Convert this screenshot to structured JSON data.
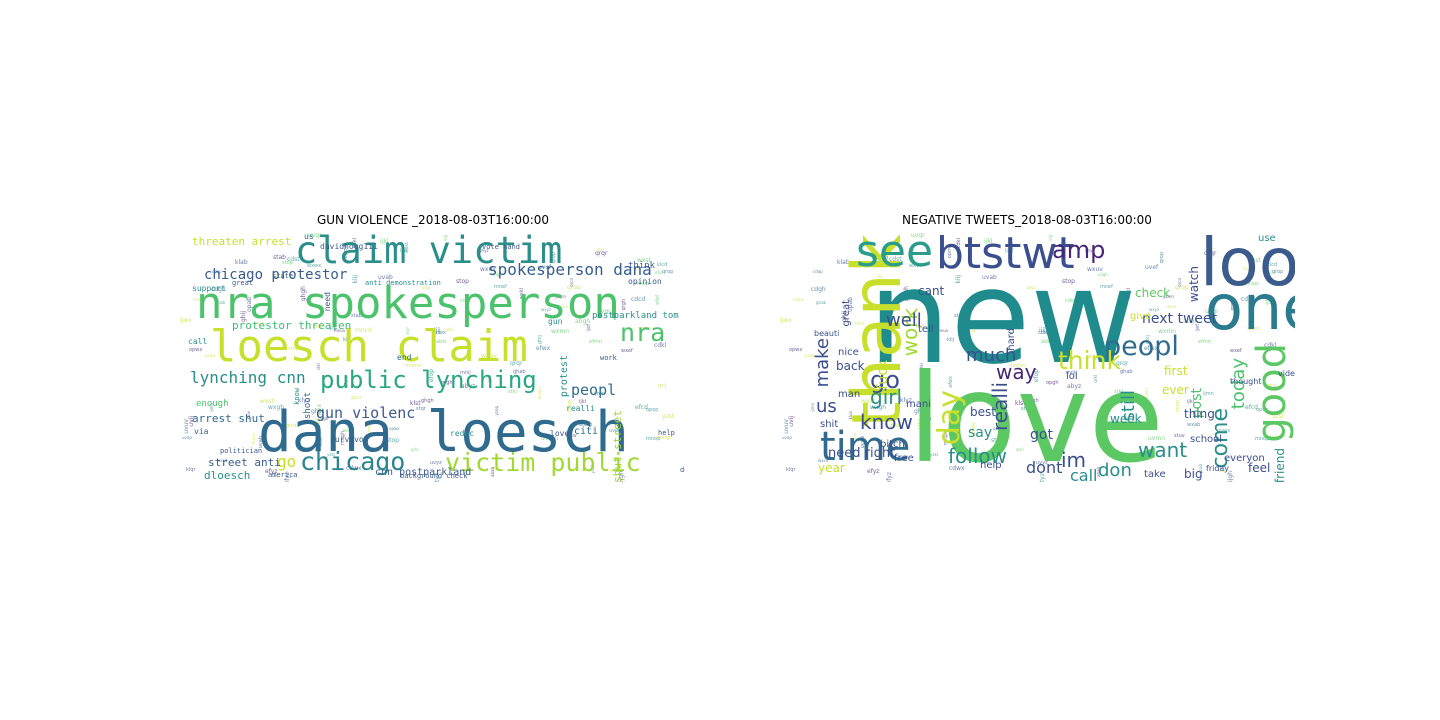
{
  "figure": {
    "left_title": "GUN VIOLENCE _2018-08-03T16:00:00",
    "right_title": "NEGATIVE TWEETS_2018-08-03T16:00:00"
  },
  "left_cloud": {
    "words": [
      {
        "text": "dana loesch",
        "size": "large",
        "color": "#2f6b8e"
      },
      {
        "text": "nra spokesperson",
        "size": "large",
        "color": "#4cc26c"
      },
      {
        "text": "loesch claim",
        "size": "large",
        "color": "#c8df2b"
      },
      {
        "text": "claim victim",
        "size": "large",
        "color": "#2a8f8a"
      },
      {
        "text": "public lynching",
        "size": "medium",
        "color": "#29a782"
      },
      {
        "text": "chicago",
        "size": "medium",
        "color": "#2b8590"
      },
      {
        "text": "victim public",
        "size": "medium",
        "color": "#a0d936"
      },
      {
        "text": "spokesperson dana",
        "size": "medium",
        "color": "#345e8d"
      },
      {
        "text": "nra",
        "size": "medium",
        "color": "#4cc26c"
      },
      {
        "text": "chicago protestor",
        "size": "medium",
        "color": "#3b5b8d"
      },
      {
        "text": "lynching cnn",
        "size": "medium",
        "color": "#2a8f8a"
      },
      {
        "text": "gun violenc",
        "size": "medium",
        "color": "#3b5b8d"
      },
      {
        "text": "peopl",
        "size": "medium",
        "color": "#2f6b8e"
      },
      {
        "text": "go",
        "size": "medium",
        "color": "#c8df2b"
      },
      {
        "text": "threaten arrest",
        "size": "small",
        "color": "#c8df2b"
      },
      {
        "text": "protestor threaten",
        "size": "small",
        "color": "#3fbc73"
      },
      {
        "text": "arrest shut",
        "size": "small",
        "color": "#2f6b8e"
      },
      {
        "text": "street anti",
        "size": "small",
        "color": "#3b5b8d"
      },
      {
        "text": "dloesch",
        "size": "small",
        "color": "#2a8f8a"
      },
      {
        "text": "cnn postparkland",
        "size": "small",
        "color": "#3b5b8d"
      },
      {
        "text": "postparkland tom",
        "size": "small",
        "color": "#2a8f8a"
      },
      {
        "text": "shut street",
        "size": "small",
        "color": "#a0d936"
      },
      {
        "text": "protest",
        "size": "small",
        "color": "#2a8f8a"
      },
      {
        "text": "citi",
        "size": "small",
        "color": "#2f6b8e"
      },
      {
        "text": "enough",
        "size": "small",
        "color": "#4cc26c"
      },
      {
        "text": "opinion",
        "size": "small",
        "color": "#3b5b8d"
      },
      {
        "text": "think",
        "size": "small",
        "color": "#3b5b8d"
      },
      {
        "text": "support",
        "size": "small",
        "color": "#2a8f8a"
      },
      {
        "text": "call",
        "size": "small",
        "color": "#2a8f8a"
      },
      {
        "text": "end",
        "size": "small",
        "color": "#2f6b8e"
      },
      {
        "text": "need",
        "size": "small",
        "color": "#3b5b8d"
      },
      {
        "text": "shoot",
        "size": "small",
        "color": "#2f6b8e"
      },
      {
        "text": "via",
        "size": "small",
        "color": "#3b5b8d"
      },
      {
        "text": "gun",
        "size": "small",
        "color": "#2a8f8a"
      },
      {
        "text": "reduc",
        "size": "small",
        "color": "#2a8f8a"
      },
      {
        "text": "love",
        "size": "small",
        "color": "#3b5b8d"
      },
      {
        "text": "realli",
        "size": "small",
        "color": "#2a8f8a"
      },
      {
        "text": "vote nand",
        "size": "small",
        "color": "#3b5b8d"
      },
      {
        "text": "davidhogg111",
        "size": "small",
        "color": "#3b5b8d"
      },
      {
        "text": "survivor",
        "size": "small",
        "color": "#3b5b8d"
      },
      {
        "text": "politician",
        "size": "small",
        "color": "#3b5b8d"
      },
      {
        "text": "america",
        "size": "small",
        "color": "#3b5b8d"
      },
      {
        "text": "anti demonstration",
        "size": "small",
        "color": "#2a8f8a"
      },
      {
        "text": "background check",
        "size": "small",
        "color": "#3b5b8d"
      },
      {
        "text": "us",
        "size": "small",
        "color": "#2f6b8e"
      },
      {
        "text": "great",
        "size": "small",
        "color": "#3b5b8d"
      },
      {
        "text": "state",
        "size": "small",
        "color": "#3b5b8d"
      },
      {
        "text": "don",
        "size": "small",
        "color": "#3b5b8d"
      },
      {
        "text": "work",
        "size": "small",
        "color": "#3b5b8d"
      },
      {
        "text": "know",
        "size": "small",
        "color": "#2a8f8a"
      },
      {
        "text": "help",
        "size": "small",
        "color": "#3b5b8d"
      }
    ]
  },
  "right_cloud": {
    "words": [
      {
        "text": "new",
        "size": "huge",
        "color": "#1f8b8c"
      },
      {
        "text": "love",
        "size": "huge",
        "color": "#5cc863"
      },
      {
        "text": "thank",
        "size": "large",
        "color": "#c8df2b"
      },
      {
        "text": "look",
        "size": "large",
        "color": "#3b5b8d"
      },
      {
        "text": "btstwt",
        "size": "large",
        "color": "#3b4f8e"
      },
      {
        "text": "one",
        "size": "large",
        "color": "#2b7b8e"
      },
      {
        "text": "see",
        "size": "large",
        "color": "#2a9d8a"
      },
      {
        "text": "time",
        "size": "large",
        "color": "#2f6b8e"
      },
      {
        "text": "good",
        "size": "large",
        "color": "#5cc863"
      },
      {
        "text": "day",
        "size": "medium",
        "color": "#c8df2b"
      },
      {
        "text": "peopl",
        "size": "medium",
        "color": "#2f6b8e"
      },
      {
        "text": "think",
        "size": "medium",
        "color": "#c8df2b"
      },
      {
        "text": "work",
        "size": "medium",
        "color": "#a0d936"
      },
      {
        "text": "follow",
        "size": "medium",
        "color": "#2a8f8a"
      },
      {
        "text": "know",
        "size": "medium",
        "color": "#3b4f8e"
      },
      {
        "text": "come",
        "size": "medium",
        "color": "#2a8f8a"
      },
      {
        "text": "today",
        "size": "medium",
        "color": "#4cc26c"
      },
      {
        "text": "amp",
        "size": "medium",
        "color": "#482677"
      },
      {
        "text": "go",
        "size": "medium",
        "color": "#3b4f8e"
      },
      {
        "text": "girl",
        "size": "medium",
        "color": "#2a8f8a"
      },
      {
        "text": "much",
        "size": "medium",
        "color": "#3b4f8e"
      },
      {
        "text": "want",
        "size": "medium",
        "color": "#2a8f8a"
      },
      {
        "text": "still",
        "size": "medium",
        "color": "#2a8f8a"
      },
      {
        "text": "im",
        "size": "medium",
        "color": "#3b4f8e"
      },
      {
        "text": "make",
        "size": "medium",
        "color": "#3b4f8e"
      },
      {
        "text": "us",
        "size": "medium",
        "color": "#3b4f8e"
      },
      {
        "text": "way",
        "size": "medium",
        "color": "#482677"
      },
      {
        "text": "well",
        "size": "medium",
        "color": "#3b4f8e"
      },
      {
        "text": "realli",
        "size": "medium",
        "color": "#3b4f8e"
      },
      {
        "text": "don",
        "size": "medium",
        "color": "#2a8f8a"
      },
      {
        "text": "call",
        "size": "medium",
        "color": "#2a8f8a"
      },
      {
        "text": "dont",
        "size": "medium",
        "color": "#3b4f8e"
      },
      {
        "text": "post",
        "size": "medium",
        "color": "#4cc26c"
      },
      {
        "text": "friend",
        "size": "medium",
        "color": "#2a8f8a"
      },
      {
        "text": "watch",
        "size": "small",
        "color": "#3b4f8e"
      },
      {
        "text": "next tweet",
        "size": "small",
        "color": "#3b4f8e"
      },
      {
        "text": "check",
        "size": "small",
        "color": "#5cc863"
      },
      {
        "text": "give",
        "size": "small",
        "color": "#c8df2b"
      },
      {
        "text": "use",
        "size": "small",
        "color": "#2a8f8a"
      },
      {
        "text": "fuck",
        "size": "small",
        "color": "#c8df2b"
      },
      {
        "text": "great",
        "size": "small",
        "color": "#3b4f8e"
      },
      {
        "text": "say",
        "size": "small",
        "color": "#2a8f8a"
      },
      {
        "text": "got",
        "size": "small",
        "color": "#3b4f8e"
      },
      {
        "text": "week",
        "size": "small",
        "color": "#2a8f8a"
      },
      {
        "text": "thing",
        "size": "small",
        "color": "#3b4f8e"
      },
      {
        "text": "first",
        "size": "small",
        "color": "#c8df2b"
      },
      {
        "text": "big",
        "size": "small",
        "color": "#3b4f8e"
      },
      {
        "text": "feel",
        "size": "small",
        "color": "#3b4f8e"
      },
      {
        "text": "need right",
        "size": "small",
        "color": "#3b4f8e"
      },
      {
        "text": "back",
        "size": "small",
        "color": "#3b4f8e"
      },
      {
        "text": "best",
        "size": "small",
        "color": "#3b4f8e"
      },
      {
        "text": "man",
        "size": "small",
        "color": "#3b4f8e"
      },
      {
        "text": "mani",
        "size": "small",
        "color": "#3b4f8e"
      },
      {
        "text": "lol",
        "size": "small",
        "color": "#3b4f8e"
      },
      {
        "text": "cant",
        "size": "small",
        "color": "#3b4f8e"
      },
      {
        "text": "tell",
        "size": "small",
        "color": "#3b4f8e"
      },
      {
        "text": "shit",
        "size": "small",
        "color": "#3b4f8e"
      },
      {
        "text": "year",
        "size": "small",
        "color": "#c8df2b"
      },
      {
        "text": "school",
        "size": "small",
        "color": "#3b4f8e"
      },
      {
        "text": "everyon",
        "size": "small",
        "color": "#3b4f8e"
      },
      {
        "text": "friday",
        "size": "small",
        "color": "#3b4f8e"
      },
      {
        "text": "take",
        "size": "small",
        "color": "#3b4f8e"
      },
      {
        "text": "hard",
        "size": "small",
        "color": "#3b4f8e"
      },
      {
        "text": "help",
        "size": "small",
        "color": "#3b4f8e"
      },
      {
        "text": "free",
        "size": "small",
        "color": "#3b4f8e"
      },
      {
        "text": "bitch",
        "size": "small",
        "color": "#3b4f8e"
      },
      {
        "text": "beauti",
        "size": "small",
        "color": "#3b4f8e"
      },
      {
        "text": "nice",
        "size": "small",
        "color": "#3b4f8e"
      },
      {
        "text": "ever",
        "size": "small",
        "color": "#c8df2b"
      },
      {
        "text": "video",
        "size": "small",
        "color": "#3b4f8e"
      },
      {
        "text": "thought",
        "size": "small",
        "color": "#3b4f8e"
      }
    ]
  }
}
